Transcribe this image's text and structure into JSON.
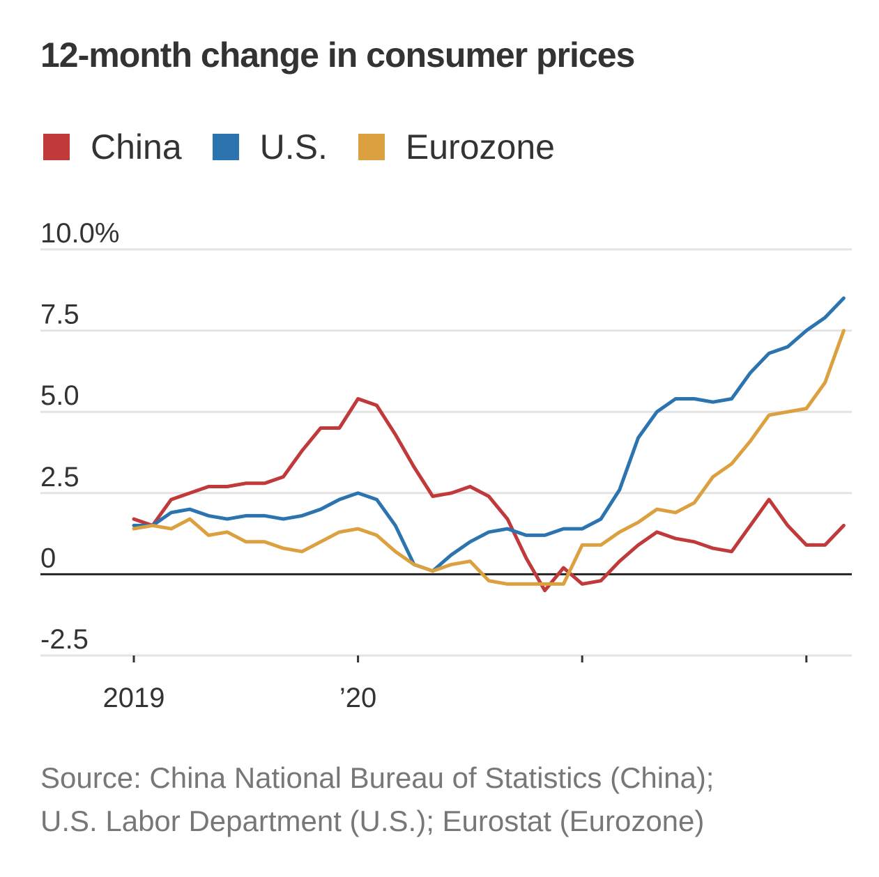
{
  "title": "12-month change in consumer prices",
  "legend": [
    {
      "label": "China",
      "color": "#c0393b"
    },
    {
      "label": "U.S.",
      "color": "#2b74b0"
    },
    {
      "label": "Eurozone",
      "color": "#dba040"
    }
  ],
  "source": {
    "line1": "Source: China National Bureau of Statistics (China);",
    "line2": "U.S. Labor Department (U.S.); Eurostat (Eurozone)"
  },
  "chart_data": {
    "type": "line",
    "title": "12-month change in consumer prices",
    "xlabel": "",
    "ylabel": "",
    "ylim": [
      -2.5,
      10.0
    ],
    "yticks": [
      {
        "value": 10.0,
        "label": "10.0%"
      },
      {
        "value": 7.5,
        "label": "7.5"
      },
      {
        "value": 5.0,
        "label": "5.0"
      },
      {
        "value": 2.5,
        "label": "2.5"
      },
      {
        "value": 0,
        "label": "0"
      },
      {
        "value": -2.5,
        "label": "-2.5"
      }
    ],
    "xticks": [
      {
        "index": 0,
        "label": "2019"
      },
      {
        "index": 12,
        "label": "’20"
      },
      {
        "index": 24,
        "label": ""
      },
      {
        "index": 36,
        "label": ""
      }
    ],
    "x_start": "2019-01",
    "grid": true,
    "legend_position": "top-left",
    "series": [
      {
        "name": "China",
        "color": "#c0393b",
        "values": [
          1.7,
          1.5,
          2.3,
          2.5,
          2.7,
          2.7,
          2.8,
          2.8,
          3.0,
          3.8,
          4.5,
          4.5,
          5.4,
          5.2,
          4.3,
          3.3,
          2.4,
          2.5,
          2.7,
          2.4,
          1.7,
          0.5,
          -0.5,
          0.2,
          -0.3,
          -0.2,
          0.4,
          0.9,
          1.3,
          1.1,
          1.0,
          0.8,
          0.7,
          1.5,
          2.3,
          1.5,
          0.9,
          0.9,
          1.5
        ]
      },
      {
        "name": "U.S.",
        "color": "#2b74b0",
        "values": [
          1.5,
          1.5,
          1.9,
          2.0,
          1.8,
          1.7,
          1.8,
          1.8,
          1.7,
          1.8,
          2.0,
          2.3,
          2.5,
          2.3,
          1.5,
          0.3,
          0.1,
          0.6,
          1.0,
          1.3,
          1.4,
          1.2,
          1.2,
          1.4,
          1.4,
          1.7,
          2.6,
          4.2,
          5.0,
          5.4,
          5.4,
          5.3,
          5.4,
          6.2,
          6.8,
          7.0,
          7.5,
          7.9,
          8.5
        ]
      },
      {
        "name": "Eurozone",
        "color": "#dba040",
        "values": [
          1.4,
          1.5,
          1.4,
          1.7,
          1.2,
          1.3,
          1.0,
          1.0,
          0.8,
          0.7,
          1.0,
          1.3,
          1.4,
          1.2,
          0.7,
          0.3,
          0.1,
          0.3,
          0.4,
          -0.2,
          -0.3,
          -0.3,
          -0.3,
          -0.3,
          0.9,
          0.9,
          1.3,
          1.6,
          2.0,
          1.9,
          2.2,
          3.0,
          3.4,
          4.1,
          4.9,
          5.0,
          5.1,
          5.9,
          7.5
        ]
      }
    ]
  }
}
